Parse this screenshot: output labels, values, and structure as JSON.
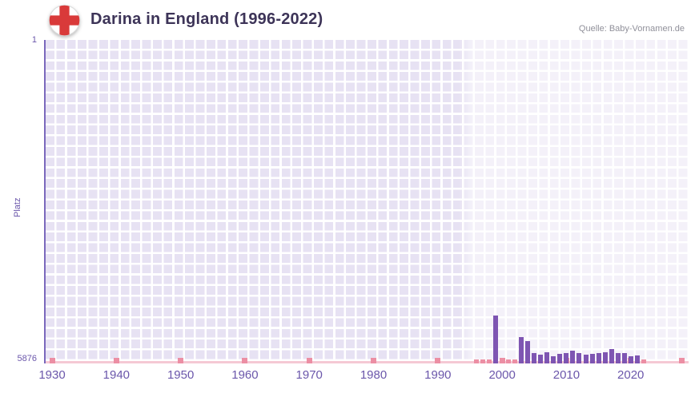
{
  "header": {
    "title": "Darina in England (1996-2022)",
    "source": "Quelle: Baby-Vornamen.de",
    "flag_icon": "england-flag-icon"
  },
  "chart_data": {
    "type": "bar",
    "title": "Darina in England (1996-2022)",
    "ylabel": "Platz",
    "y_axis": {
      "top_label": "1",
      "bottom_label": "5876",
      "min": 1,
      "max": 5876,
      "inverted": true
    },
    "x_axis": {
      "range": [
        1929,
        2029
      ],
      "tick_labels": [
        "1930",
        "1940",
        "1950",
        "1960",
        "1970",
        "1980",
        "1990",
        "2000",
        "2010",
        "2020"
      ],
      "marker_years": [
        1930,
        1940,
        1950,
        1960,
        1970,
        1980,
        1990,
        2000,
        2010,
        2020,
        2028
      ]
    },
    "highlight": {
      "start_year": 1995,
      "note": "lighter band over data period through right edge"
    },
    "grid": "on",
    "series": [
      {
        "name": "Platz",
        "points": [
          {
            "year": 1999,
            "rank": 5010
          },
          {
            "year": 2003,
            "rank": 5400
          },
          {
            "year": 2004,
            "rank": 5470
          },
          {
            "year": 2005,
            "rank": 5680
          },
          {
            "year": 2006,
            "rank": 5710
          },
          {
            "year": 2007,
            "rank": 5670
          },
          {
            "year": 2008,
            "rank": 5740
          },
          {
            "year": 2009,
            "rank": 5700
          },
          {
            "year": 2010,
            "rank": 5690
          },
          {
            "year": 2011,
            "rank": 5650
          },
          {
            "year": 2012,
            "rank": 5680
          },
          {
            "year": 2013,
            "rank": 5720
          },
          {
            "year": 2014,
            "rank": 5700
          },
          {
            "year": 2015,
            "rank": 5680
          },
          {
            "year": 2016,
            "rank": 5670
          },
          {
            "year": 2017,
            "rank": 5620
          },
          {
            "year": 2018,
            "rank": 5690
          },
          {
            "year": 2019,
            "rank": 5680
          },
          {
            "year": 2020,
            "rank": 5750
          },
          {
            "year": 2021,
            "rank": 5730
          }
        ]
      }
    ],
    "no_rank_years": [
      1996,
      1997,
      1998,
      2000,
      2001,
      2002,
      2022
    ],
    "colors": {
      "bar": "#7e55b2",
      "grid_cell": "#e7e2f3",
      "grid_line": "#ffffff",
      "axis_line": "#7a68bc",
      "axis_text": "#6b57ab",
      "baseline_pink": "#f5c9d4",
      "marker_pink": "#ec8fa4",
      "title_text": "#3d3458",
      "source_text": "#90909a",
      "flag_red": "#d93a3a"
    }
  }
}
